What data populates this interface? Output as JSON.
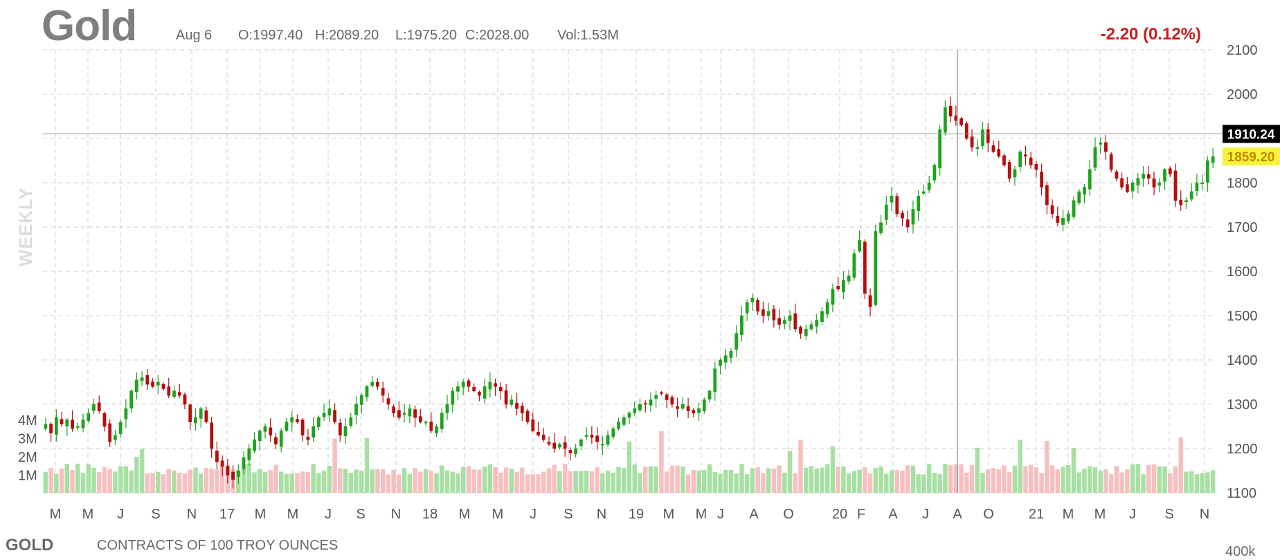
{
  "header": {
    "symbol_title": "Gold",
    "date": "Aug 6",
    "open": "O:1997.40",
    "high": "H:2089.20",
    "low": "L:1975.20",
    "close": "C:2028.00",
    "volume": "Vol:1.53M",
    "change": "-2.20 (0.12%)"
  },
  "side_label": "WEEKLY",
  "footer": {
    "symbol": "GOLD",
    "description": "CONTRACTS OF 100 TROY OUNCES",
    "volume_axis_label": "400k"
  },
  "colors": {
    "up": "#1fa21f",
    "down": "#b50e0e",
    "volume_up": "#a8e0a3",
    "volume_down": "#f7c0c0",
    "grid": "#cfcfcf",
    "crosshair_label_bg": "#000000",
    "last_price_bg": "#f7f33a"
  },
  "chart_data": {
    "type": "candlestick",
    "interval": "weekly",
    "price_axis": {
      "min": 1100,
      "max": 2100,
      "ticks": [
        2100,
        2000,
        1800,
        1700,
        1600,
        1500,
        1400,
        1300,
        1200,
        1100
      ]
    },
    "volume_axis": {
      "ticks": [
        "4M",
        "3M",
        "2M",
        "1M"
      ],
      "values": [
        4,
        3,
        2,
        1
      ],
      "unit": "M"
    },
    "x_tick_labels": [
      "M",
      "M",
      "J",
      "S",
      "N",
      "17",
      "M",
      "M",
      "J",
      "S",
      "N",
      "18",
      "M",
      "M",
      "J",
      "S",
      "N",
      "19",
      "M",
      "M",
      "J",
      "A",
      "O",
      "20",
      "F",
      "A",
      "J",
      "A",
      "O",
      "21",
      "M",
      "M",
      "J",
      "S",
      "N"
    ],
    "crosshair": {
      "price": 1910.24,
      "label": "1910.24",
      "date": "Aug 6"
    },
    "last_price": {
      "price": 1859.2,
      "label": "1859.20"
    },
    "weekly_close_anchors": [
      1255,
      1235,
      1270,
      1255,
      1265,
      1245,
      1250,
      1265,
      1280,
      1300,
      1285,
      1250,
      1215,
      1230,
      1260,
      1290,
      1330,
      1355,
      1360,
      1345,
      1340,
      1350,
      1335,
      1320,
      1330,
      1320,
      1300,
      1260,
      1270,
      1290,
      1260,
      1200,
      1170,
      1160,
      1140,
      1130,
      1150,
      1180,
      1200,
      1220,
      1240,
      1250,
      1230,
      1210,
      1240,
      1260,
      1270,
      1260,
      1230,
      1220,
      1250,
      1270,
      1280,
      1290,
      1260,
      1230,
      1250,
      1270,
      1300,
      1320,
      1340,
      1350,
      1340,
      1320,
      1300,
      1280,
      1270,
      1280,
      1290,
      1270,
      1260,
      1260,
      1240,
      1250,
      1280,
      1300,
      1330,
      1340,
      1350,
      1340,
      1330,
      1320,
      1340,
      1350,
      1340,
      1330,
      1300,
      1310,
      1290,
      1280,
      1260,
      1240,
      1230,
      1220,
      1210,
      1200,
      1210,
      1200,
      1190,
      1200,
      1220,
      1230,
      1225,
      1215,
      1210,
      1230,
      1245,
      1260,
      1270,
      1280,
      1290,
      1300,
      1300,
      1310,
      1320,
      1325,
      1310,
      1300,
      1290,
      1300,
      1285,
      1280,
      1290,
      1310,
      1330,
      1380,
      1400,
      1410,
      1420,
      1460,
      1500,
      1530,
      1540,
      1510,
      1500,
      1510,
      1490,
      1480,
      1490,
      1500,
      1470,
      1460,
      1470,
      1480,
      1490,
      1510,
      1530,
      1560,
      1560,
      1580,
      1590,
      1640,
      1670,
      1550,
      1520,
      1690,
      1710,
      1750,
      1770,
      1730,
      1720,
      1700,
      1740,
      1770,
      1780,
      1800,
      1840,
      1920,
      1970,
      1950,
      1940,
      1930,
      1900,
      1880,
      1880,
      1920,
      1890,
      1870,
      1860,
      1840,
      1810,
      1830,
      1870,
      1860,
      1840,
      1830,
      1790,
      1750,
      1730,
      1710,
      1720,
      1730,
      1760,
      1780,
      1790,
      1830,
      1880,
      1890,
      1870,
      1830,
      1810,
      1790,
      1780,
      1800,
      1810,
      1820,
      1810,
      1790,
      1800,
      1830,
      1820,
      1760,
      1750,
      1760,
      1780,
      1800,
      1800,
      1850,
      1859
    ]
  }
}
